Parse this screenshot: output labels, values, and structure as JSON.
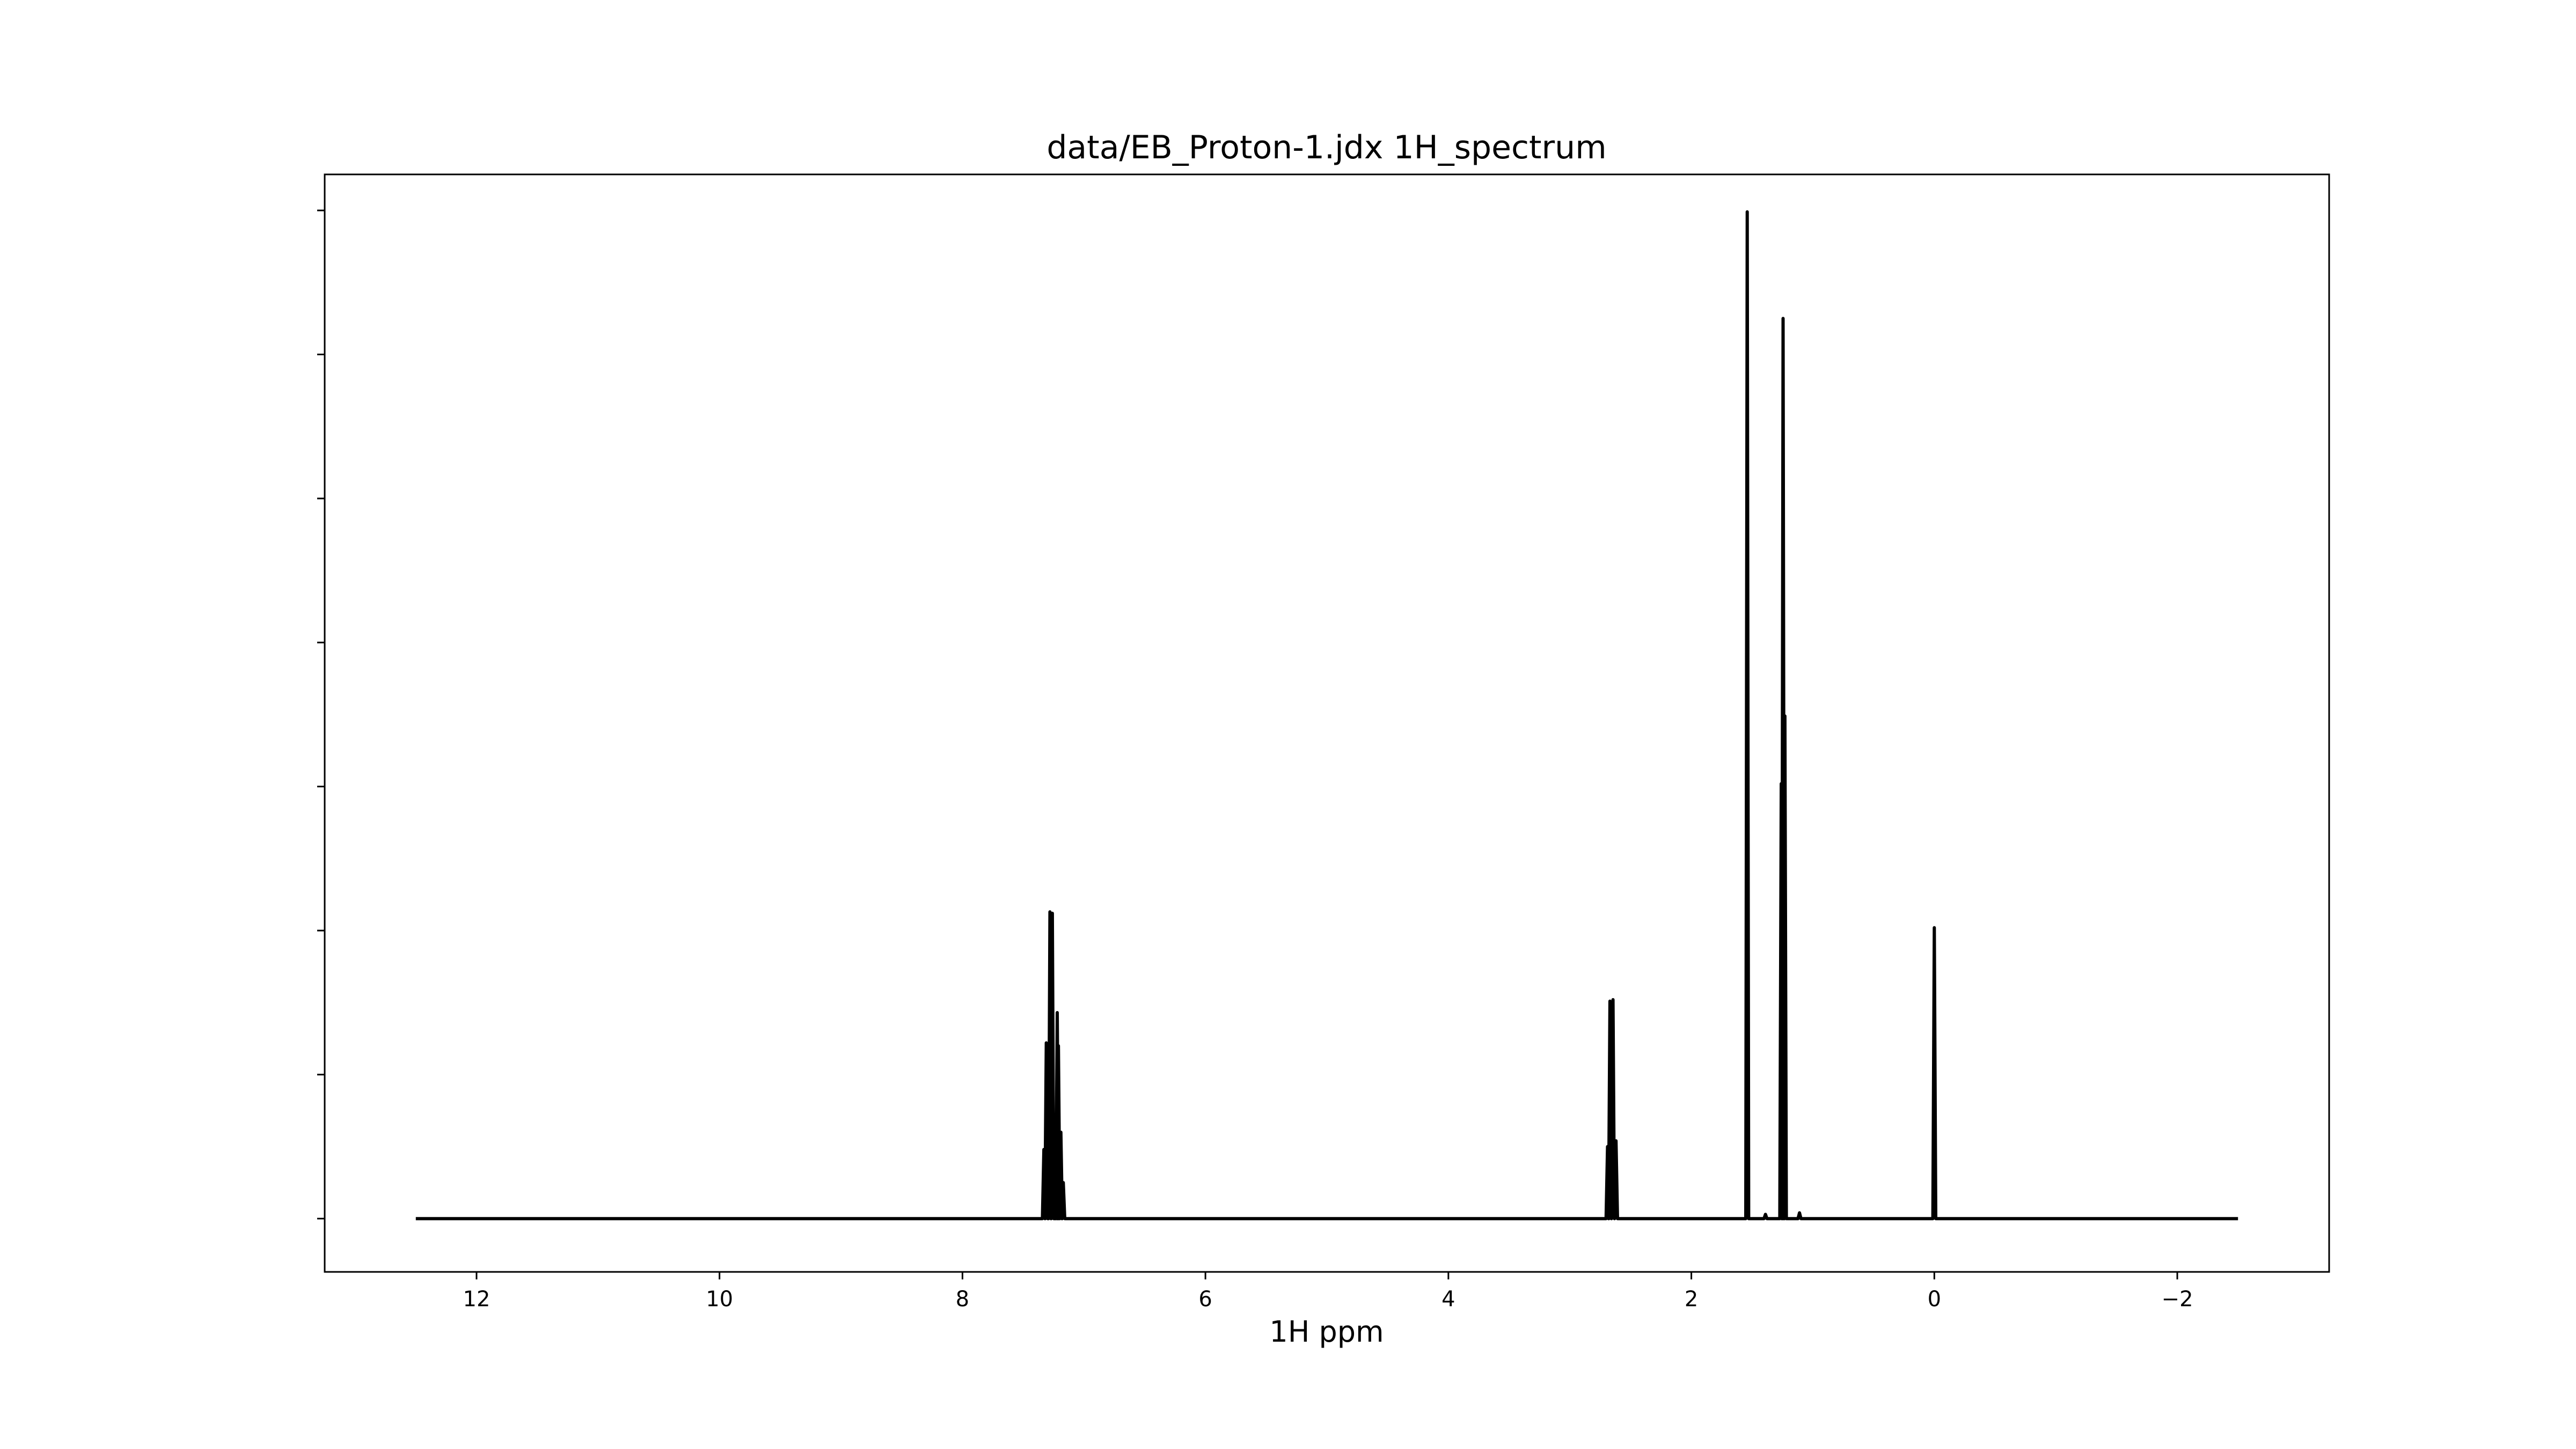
{
  "chart_data": {
    "type": "line",
    "title": "data/EB_Proton-1.jdx 1H_spectrum",
    "xlabel": "1H ppm",
    "ylabel": "",
    "x_reversed": true,
    "xlim": [
      13.25,
      -3.25
    ],
    "ylim": [
      -0.037,
      0.725
    ],
    "x_ticks": [
      12,
      10,
      8,
      6,
      4,
      2,
      0,
      -2
    ],
    "x_tick_labels": [
      "12",
      "10",
      "8",
      "6",
      "4",
      "2",
      "0",
      "−2"
    ],
    "y_ticks": [
      0,
      0.1,
      0.2,
      0.3,
      0.4,
      0.5,
      0.6,
      0.7
    ],
    "y_tick_labels_shown": false,
    "grid": false,
    "legend": "none",
    "line_color": "#000000",
    "x_range": [
      12.5,
      -2.5
    ],
    "baseline": 0,
    "series": [
      {
        "peaks": [
          {
            "x": 7.33,
            "y": 0.048
          },
          {
            "x": 7.31,
            "y": 0.122
          },
          {
            "x": 7.28,
            "y": 0.213
          },
          {
            "x": 7.26,
            "y": 0.212
          },
          {
            "x": 7.22,
            "y": 0.143
          },
          {
            "x": 7.21,
            "y": 0.12
          },
          {
            "x": 7.19,
            "y": 0.06
          },
          {
            "x": 7.17,
            "y": 0.025
          },
          {
            "x": 2.69,
            "y": 0.05
          },
          {
            "x": 2.67,
            "y": 0.151
          },
          {
            "x": 2.645,
            "y": 0.152
          },
          {
            "x": 2.62,
            "y": 0.054
          },
          {
            "x": 1.54,
            "y": 0.699
          },
          {
            "x": 1.26,
            "y": 0.302
          },
          {
            "x": 1.245,
            "y": 0.625
          },
          {
            "x": 1.23,
            "y": 0.349
          },
          {
            "x": 1.11,
            "y": 0.004
          },
          {
            "x": 1.39,
            "y": 0.003
          },
          {
            "x": 0.0,
            "y": 0.202
          }
        ]
      }
    ]
  }
}
